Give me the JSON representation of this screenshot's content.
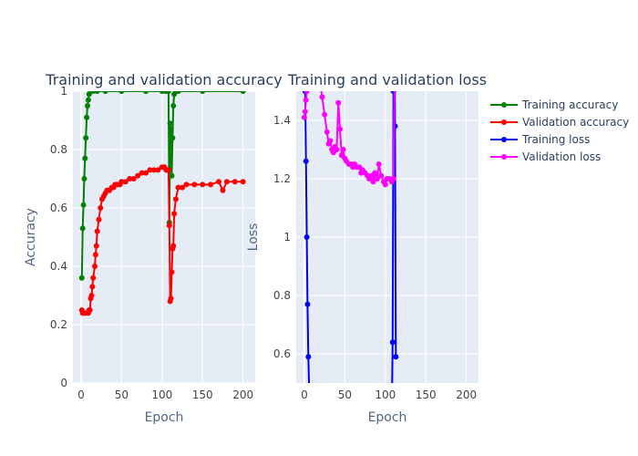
{
  "colors": {
    "plot_bg": "#e5ecf6",
    "grid": "#ffffff",
    "training_accuracy": "#008000",
    "validation_accuracy": "#ff0000",
    "training_loss": "#0000ff",
    "validation_loss": "#ff00ff"
  },
  "legend": {
    "placement": "right",
    "items": [
      "Training accuracy",
      "Validation accuracy",
      "Training loss",
      "Validation loss"
    ]
  },
  "chart_data": [
    {
      "type": "line",
      "title": "Training and validation accuracy",
      "xlabel": "Epoch",
      "ylabel": "Accuracy",
      "xlim": [
        -10,
        215
      ],
      "ylim": [
        0,
        1
      ],
      "x_ticks": [
        "0",
        "50",
        "100",
        "150",
        "200"
      ],
      "y_ticks": [
        "0",
        "0.2",
        "0.4",
        "0.6",
        "0.8",
        "1"
      ],
      "grid": true,
      "series": [
        {
          "name": "Training accuracy",
          "color_key": "training_accuracy",
          "x": [
            1,
            2,
            3,
            4,
            5,
            6,
            7,
            8,
            9,
            10,
            12,
            15,
            20,
            30,
            50,
            80,
            100,
            105,
            108,
            109,
            110,
            111,
            112,
            113,
            114,
            115,
            117,
            120,
            150,
            200
          ],
          "y": [
            0.36,
            0.53,
            0.61,
            0.7,
            0.77,
            0.84,
            0.91,
            0.95,
            0.97,
            0.99,
            1.0,
            1.0,
            1.0,
            1.0,
            1.0,
            1.0,
            1.0,
            1.0,
            1.0,
            0.55,
            0.89,
            0.87,
            0.71,
            0.84,
            0.95,
            0.99,
            1.0,
            1.0,
            1.0,
            1.0
          ]
        },
        {
          "name": "Validation accuracy",
          "color_key": "validation_accuracy",
          "x": [
            1,
            2,
            3,
            5,
            7,
            9,
            10,
            11,
            12,
            13,
            14,
            15,
            17,
            18,
            19,
            20,
            22,
            24,
            26,
            28,
            30,
            32,
            35,
            38,
            40,
            42,
            45,
            48,
            50,
            55,
            60,
            65,
            70,
            75,
            80,
            85,
            90,
            95,
            100,
            103,
            105,
            107,
            108,
            109,
            110,
            111,
            112,
            113,
            114,
            115,
            117,
            120,
            125,
            130,
            140,
            150,
            160,
            170,
            175,
            180,
            190,
            200
          ],
          "y": [
            0.25,
            0.24,
            0.24,
            0.24,
            0.24,
            0.24,
            0.25,
            0.25,
            0.29,
            0.3,
            0.33,
            0.36,
            0.4,
            0.44,
            0.47,
            0.52,
            0.56,
            0.6,
            0.63,
            0.64,
            0.65,
            0.66,
            0.66,
            0.67,
            0.67,
            0.68,
            0.68,
            0.68,
            0.69,
            0.69,
            0.7,
            0.7,
            0.71,
            0.72,
            0.72,
            0.73,
            0.73,
            0.73,
            0.74,
            0.74,
            0.73,
            0.73,
            0.73,
            0.54,
            0.28,
            0.29,
            0.38,
            0.46,
            0.47,
            0.58,
            0.63,
            0.67,
            0.67,
            0.68,
            0.68,
            0.68,
            0.68,
            0.69,
            0.66,
            0.69,
            0.69,
            0.69
          ]
        }
      ]
    },
    {
      "type": "line",
      "title": "Training and validation loss",
      "xlabel": "Epoch",
      "ylabel": "Loss",
      "xlim": [
        -10,
        215
      ],
      "ylim": [
        0.5,
        1.5
      ],
      "x_ticks": [
        "0",
        "50",
        "100",
        "150",
        "200"
      ],
      "y_ticks": [
        "0.6",
        "0.8",
        "1",
        "1.2",
        "1.4"
      ],
      "grid": true,
      "series": [
        {
          "name": "Training loss",
          "color_key": "training_loss",
          "x": [
            1,
            2,
            3,
            4,
            5,
            6,
            7,
            108,
            109,
            110,
            111,
            112,
            113
          ],
          "y": [
            1.5,
            1.26,
            1.0,
            0.77,
            0.59,
            0.48,
            0.4,
            0.4,
            0.64,
            1.5,
            2.0,
            1.38,
            0.59
          ]
        },
        {
          "name": "Validation loss",
          "color_key": "validation_loss",
          "x": [
            0,
            1,
            2,
            3,
            4,
            5,
            6,
            18,
            20,
            22,
            25,
            28,
            30,
            32,
            34,
            36,
            38,
            40,
            42,
            44,
            46,
            48,
            50,
            52,
            55,
            58,
            60,
            62,
            65,
            68,
            70,
            72,
            75,
            78,
            80,
            83,
            85,
            87,
            90,
            92,
            95,
            98,
            100,
            102,
            105,
            108,
            110,
            112
          ],
          "y": [
            1.41,
            1.43,
            1.47,
            1.5,
            1.55,
            1.62,
            1.7,
            1.6,
            1.52,
            1.48,
            1.42,
            1.36,
            1.32,
            1.33,
            1.3,
            1.29,
            1.31,
            1.3,
            1.46,
            1.37,
            1.28,
            1.3,
            1.27,
            1.26,
            1.25,
            1.25,
            1.24,
            1.25,
            1.24,
            1.24,
            1.22,
            1.23,
            1.22,
            1.21,
            1.2,
            1.21,
            1.19,
            1.22,
            1.2,
            1.25,
            1.21,
            1.19,
            1.18,
            1.2,
            1.2,
            1.19,
            1.2,
            1.7
          ]
        }
      ]
    }
  ]
}
